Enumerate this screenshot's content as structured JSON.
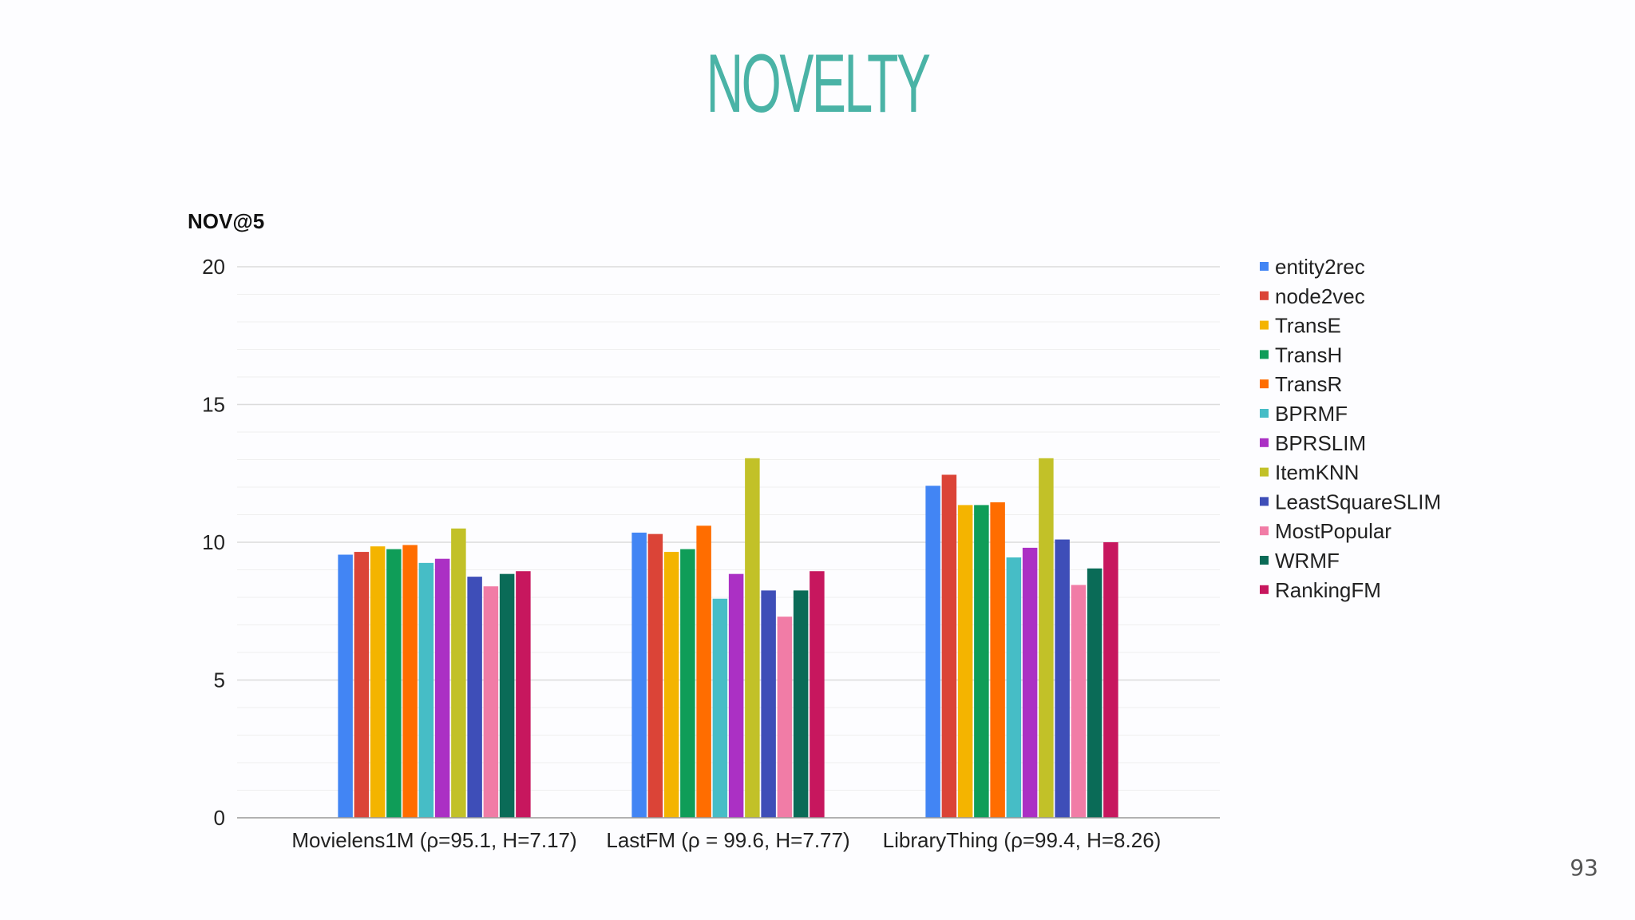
{
  "slide": {
    "title": "NOVELTY",
    "page_number": "93"
  },
  "colors": {
    "title": "#4ab3a6",
    "gridline": "#e6e6e6",
    "axis": "#999999",
    "text": "#222222"
  },
  "chart_data": {
    "type": "bar",
    "ylabel": "NOV@5",
    "ylim": [
      0,
      20
    ],
    "yticks": [
      0,
      5,
      10,
      15,
      20
    ],
    "grid": true,
    "legend_position": "right",
    "categories": [
      "Movielens1M (ρ=95.1, H=7.17)",
      "LastFM (ρ = 99.6, H=7.77)",
      "LibraryThing (ρ=99.4, H=8.26)"
    ],
    "series": [
      {
        "name": "entity2rec",
        "color": "#4285f4",
        "values": [
          9.55,
          10.35,
          12.05
        ]
      },
      {
        "name": "node2vec",
        "color": "#db4437",
        "values": [
          9.65,
          10.3,
          12.45
        ]
      },
      {
        "name": "TransE",
        "color": "#f4b400",
        "values": [
          9.85,
          9.65,
          11.35
        ]
      },
      {
        "name": "TransH",
        "color": "#0f9d58",
        "values": [
          9.75,
          9.75,
          11.35
        ]
      },
      {
        "name": "TransR",
        "color": "#ff6d00",
        "values": [
          9.9,
          10.6,
          11.45
        ]
      },
      {
        "name": "BPRMF",
        "color": "#46bdc6",
        "values": [
          9.25,
          7.95,
          9.45
        ]
      },
      {
        "name": "BPRSLIM",
        "color": "#ab30c4",
        "values": [
          9.4,
          8.85,
          9.8
        ]
      },
      {
        "name": "ItemKNN",
        "color": "#c2c128",
        "values": [
          10.5,
          13.05,
          13.05
        ]
      },
      {
        "name": "LeastSquareSLIM",
        "color": "#3e4eb8",
        "values": [
          8.75,
          8.25,
          10.1
        ]
      },
      {
        "name": "MostPopular",
        "color": "#f17ca6",
        "values": [
          8.4,
          7.3,
          8.45
        ]
      },
      {
        "name": "WRMF",
        "color": "#0a6b57",
        "values": [
          8.85,
          8.25,
          9.05
        ]
      },
      {
        "name": "RankingFM",
        "color": "#c7175e",
        "values": [
          8.95,
          8.95,
          10.0
        ]
      }
    ]
  }
}
